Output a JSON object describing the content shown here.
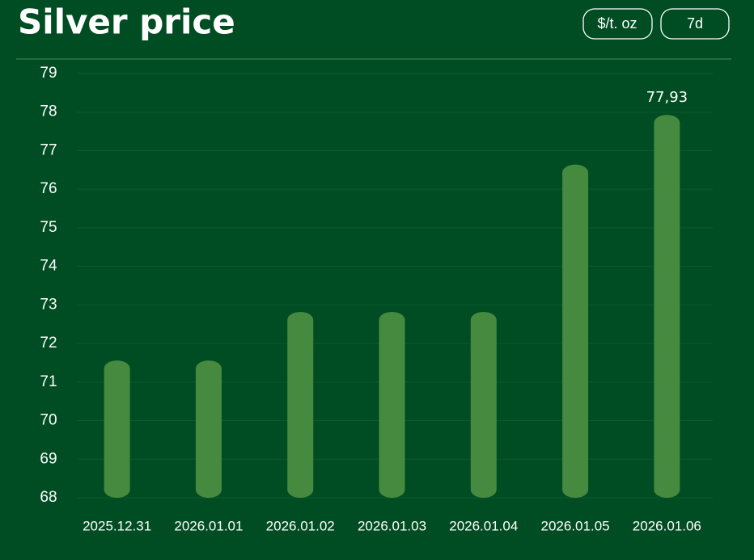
{
  "controls": [
    "$/t. oz",
    "7d"
  ],
  "chart_data": {
    "type": "bar",
    "title": "Silver price",
    "categories": [
      "2025.12.31",
      "2026.01.01",
      "2026.01.02",
      "2026.01.03",
      "2026.01.04",
      "2026.01.05",
      "2026.01.06"
    ],
    "values": [
      71.56,
      71.56,
      72.82,
      72.82,
      72.82,
      76.64,
      77.93
    ],
    "value_labels": [
      null,
      null,
      null,
      null,
      null,
      null,
      "77,93"
    ],
    "color": "#458a3f",
    "ylim": [
      68,
      79
    ],
    "yticks": [
      68,
      69,
      70,
      71,
      72,
      73,
      74,
      75,
      76,
      77,
      78,
      79
    ],
    "grid": true
  }
}
